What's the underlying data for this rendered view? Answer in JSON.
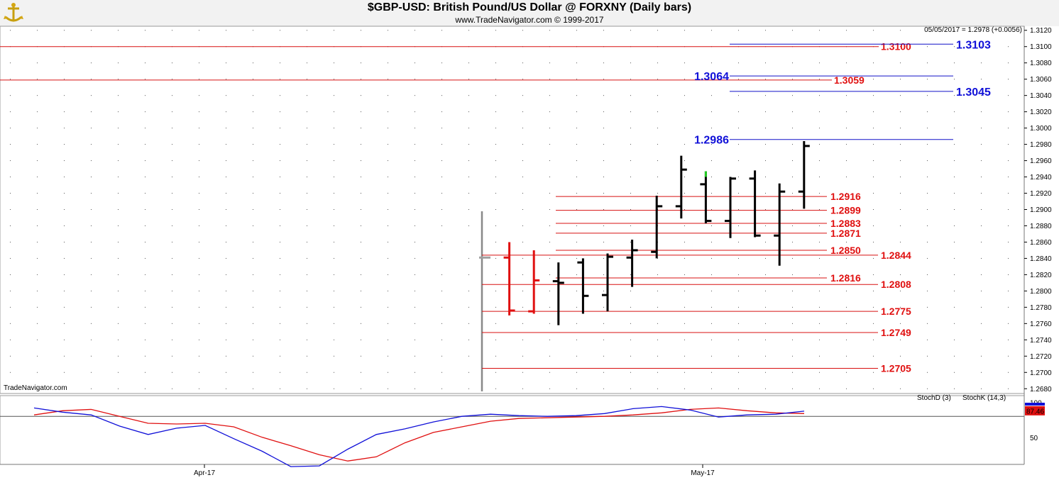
{
  "header": {
    "title": "$GBP-USD:  British Pound/US Dollar @ FORXNY  (Daily bars)",
    "subtitle": "www.TradeNavigator.com © 1999-2017"
  },
  "readout": "05/05/2017 = 1.2978 (+0.0056)",
  "watermark": "TradeNavigator.com",
  "x_axis_labels": [
    "Apr-17",
    "May-17"
  ],
  "chart_data": [
    {
      "type": "bar",
      "subtype": "ohlc",
      "ylim": [
        1.2675,
        1.3125
      ],
      "y_ticks": [
        "1.3120",
        "1.3100",
        "1.3080",
        "1.3060",
        "1.3040",
        "1.3020",
        "1.3000",
        "1.2980",
        "1.2960",
        "1.2940",
        "1.2920",
        "1.2900",
        "1.2880",
        "1.2860",
        "1.2840",
        "1.2820",
        "1.2800",
        "1.2780",
        "1.2760",
        "1.2740",
        "1.2720",
        "1.2700",
        "1.2680"
      ],
      "colors": {
        "down_bar": "#e01010",
        "up_bar": "#000000",
        "level_red": "#d81010",
        "level_blue": "#1010c8",
        "highlight_tick": "#22cc22"
      },
      "bars": [
        {
          "x": 0,
          "open": 1.2841,
          "high": 1.2841,
          "low": 1.2841,
          "close": 1.2841,
          "color": "gray"
        },
        {
          "x": 1,
          "open": 1.2841,
          "high": 1.286,
          "low": 1.277,
          "close": 1.2776,
          "color": "red"
        },
        {
          "x": 2,
          "open": 1.2775,
          "high": 1.285,
          "low": 1.2772,
          "close": 1.2813,
          "color": "red"
        },
        {
          "x": 3,
          "open": 1.2812,
          "high": 1.2835,
          "low": 1.2758,
          "close": 1.281,
          "color": "black"
        },
        {
          "x": 4,
          "open": 1.2835,
          "high": 1.284,
          "low": 1.2772,
          "close": 1.2794,
          "color": "black"
        },
        {
          "x": 5,
          "open": 1.2795,
          "high": 1.2846,
          "low": 1.2775,
          "close": 1.2842,
          "color": "black"
        },
        {
          "x": 6,
          "open": 1.2841,
          "high": 1.2863,
          "low": 1.2805,
          "close": 1.285,
          "color": "black"
        },
        {
          "x": 7,
          "open": 1.2848,
          "high": 1.2917,
          "low": 1.284,
          "close": 1.2904,
          "color": "black"
        },
        {
          "x": 8,
          "open": 1.2904,
          "high": 1.2966,
          "low": 1.2889,
          "close": 1.2949,
          "color": "black"
        },
        {
          "x": 9,
          "open": 1.2931,
          "high": 1.2947,
          "low": 1.2883,
          "close": 1.2886,
          "color": "black",
          "high_color": "green"
        },
        {
          "x": 10,
          "open": 1.2886,
          "high": 1.294,
          "low": 1.2865,
          "close": 1.2938,
          "color": "black"
        },
        {
          "x": 11,
          "open": 1.2938,
          "high": 1.2948,
          "low": 1.2866,
          "close": 1.2868,
          "color": "black"
        },
        {
          "x": 12,
          "open": 1.2868,
          "high": 1.2932,
          "low": 1.2831,
          "close": 1.2922,
          "color": "black"
        },
        {
          "x": 13,
          "open": 1.2922,
          "high": 1.2984,
          "low": 1.2901,
          "close": 1.2978,
          "color": "black"
        }
      ],
      "levels_red": [
        {
          "value": 1.31,
          "label": "1.3100"
        },
        {
          "value": 1.3059,
          "label": "1.3059"
        },
        {
          "value": 1.2916,
          "label": "1.2916"
        },
        {
          "value": 1.2899,
          "label": "1.2899"
        },
        {
          "value": 1.2883,
          "label": "1.2883"
        },
        {
          "value": 1.2871,
          "label": "1.2871"
        },
        {
          "value": 1.285,
          "label": "1.2850"
        },
        {
          "value": 1.2844,
          "label": "1.2844"
        },
        {
          "value": 1.2816,
          "label": "1.2816"
        },
        {
          "value": 1.2808,
          "label": "1.2808"
        },
        {
          "value": 1.2775,
          "label": "1.2775"
        },
        {
          "value": 1.2749,
          "label": "1.2749"
        },
        {
          "value": 1.2705,
          "label": "1.2705"
        }
      ],
      "levels_blue": [
        {
          "value": 1.3103,
          "label": "1.3103"
        },
        {
          "value": 1.3064,
          "label": "1.3064"
        },
        {
          "value": 1.3045,
          "label": "1.3045"
        },
        {
          "value": 1.2986,
          "label": "1.2986"
        }
      ]
    },
    {
      "type": "line",
      "ylim": [
        0,
        100
      ],
      "y_ticks": [
        "100",
        "50"
      ],
      "reference_line": 80,
      "last_value": "87.46",
      "legend": [
        "StochD (3)",
        "StochK (14,3)"
      ],
      "series": [
        {
          "name": "StochD (3)",
          "color": "#e01010",
          "values": [
            82,
            88,
            90,
            80,
            70,
            69,
            70,
            65,
            50,
            38,
            25,
            16,
            22,
            42,
            57,
            65,
            73,
            77,
            78,
            79,
            80,
            82,
            85,
            90,
            92,
            88,
            85,
            84
          ]
        },
        {
          "name": "StochK (14,3)",
          "color": "#1010d8",
          "values": [
            92,
            86,
            82,
            66,
            54,
            63,
            67,
            48,
            30,
            8,
            9,
            33,
            54,
            62,
            72,
            80,
            83,
            81,
            80,
            81,
            84,
            91,
            94,
            89,
            79,
            82,
            83,
            87.46
          ]
        }
      ]
    }
  ]
}
